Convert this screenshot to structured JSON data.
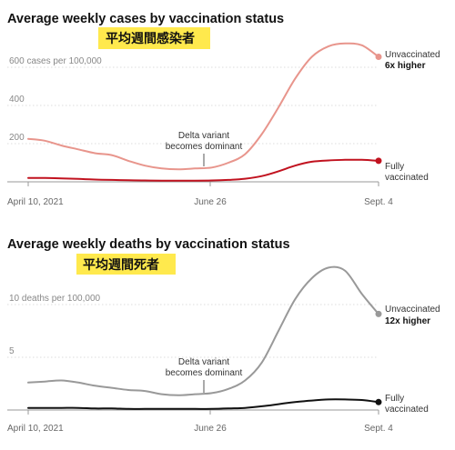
{
  "chart_data": [
    {
      "type": "line",
      "title": "Average weekly cases by vaccination status",
      "callout": "平均週間感染者",
      "ylabel": "cases per 100,000",
      "ylim": [
        0,
        800
      ],
      "yticks": [
        {
          "value": 600,
          "label": "600 cases per 100,000"
        },
        {
          "value": 400,
          "label": "400"
        },
        {
          "value": 200,
          "label": "200"
        }
      ],
      "xlim": [
        "2021-04-10",
        "2021-09-04"
      ],
      "xticks": [
        {
          "date": "2021-04-10",
          "label": "April 10, 2021"
        },
        {
          "date": "2021-06-26",
          "label": "June 26"
        },
        {
          "date": "2021-09-04",
          "label": "Sept. 4"
        }
      ],
      "annotation": {
        "date": "2021-06-26",
        "lines": [
          "Delta variant",
          "becomes dominant"
        ]
      },
      "series": [
        {
          "name": "Unvaccinated",
          "note": "6x higher",
          "color": "#e8958c",
          "x": [
            "2021-04-10",
            "2021-04-17",
            "2021-04-24",
            "2021-05-01",
            "2021-05-08",
            "2021-05-15",
            "2021-05-22",
            "2021-05-29",
            "2021-06-05",
            "2021-06-12",
            "2021-06-19",
            "2021-06-26",
            "2021-07-03",
            "2021-07-10",
            "2021-07-17",
            "2021-07-24",
            "2021-07-31",
            "2021-08-07",
            "2021-08-14",
            "2021-08-21",
            "2021-08-28",
            "2021-09-04"
          ],
          "values": [
            225,
            215,
            190,
            170,
            150,
            140,
            110,
            85,
            70,
            65,
            70,
            75,
            100,
            145,
            250,
            390,
            540,
            655,
            710,
            725,
            715,
            655
          ]
        },
        {
          "name": "Fully vaccinated",
          "note": "",
          "color": "#c1121f",
          "x": [
            "2021-04-10",
            "2021-04-17",
            "2021-04-24",
            "2021-05-01",
            "2021-05-08",
            "2021-05-15",
            "2021-05-22",
            "2021-05-29",
            "2021-06-05",
            "2021-06-12",
            "2021-06-19",
            "2021-06-26",
            "2021-07-03",
            "2021-07-10",
            "2021-07-17",
            "2021-07-24",
            "2021-07-31",
            "2021-08-07",
            "2021-08-14",
            "2021-08-21",
            "2021-08-28",
            "2021-09-04"
          ],
          "values": [
            20,
            20,
            18,
            15,
            12,
            10,
            8,
            7,
            6,
            6,
            6,
            7,
            10,
            16,
            30,
            55,
            85,
            105,
            112,
            115,
            115,
            110
          ]
        }
      ]
    },
    {
      "type": "line",
      "title": "Average weekly deaths by vaccination status",
      "callout": "平均週間死者",
      "ylabel": "deaths per 100,000",
      "ylim": [
        0,
        15
      ],
      "yticks": [
        {
          "value": 10,
          "label": "10 deaths per 100,000"
        },
        {
          "value": 5,
          "label": "5"
        }
      ],
      "xlim": [
        "2021-04-10",
        "2021-09-04"
      ],
      "xticks": [
        {
          "date": "2021-04-10",
          "label": "April 10, 2021"
        },
        {
          "date": "2021-06-26",
          "label": "June 26"
        },
        {
          "date": "2021-09-04",
          "label": "Sept. 4"
        }
      ],
      "annotation": {
        "date": "2021-06-26",
        "lines": [
          "Delta variant",
          "becomes dominant"
        ]
      },
      "series": [
        {
          "name": "Unvaccinated",
          "note": "12x higher",
          "color": "#999999",
          "x": [
            "2021-04-10",
            "2021-04-17",
            "2021-04-24",
            "2021-05-01",
            "2021-05-08",
            "2021-05-15",
            "2021-05-22",
            "2021-05-29",
            "2021-06-05",
            "2021-06-12",
            "2021-06-19",
            "2021-06-26",
            "2021-07-03",
            "2021-07-10",
            "2021-07-17",
            "2021-07-24",
            "2021-07-31",
            "2021-08-07",
            "2021-08-14",
            "2021-08-21",
            "2021-08-28",
            "2021-09-04"
          ],
          "values": [
            2.6,
            2.7,
            2.8,
            2.6,
            2.3,
            2.1,
            1.9,
            1.8,
            1.5,
            1.4,
            1.5,
            1.6,
            2.0,
            2.8,
            4.5,
            7.5,
            10.5,
            12.5,
            13.5,
            13.2,
            11.0,
            9.1
          ]
        },
        {
          "name": "Fully vaccinated",
          "note": "",
          "color": "#111111",
          "x": [
            "2021-04-10",
            "2021-04-17",
            "2021-04-24",
            "2021-05-01",
            "2021-05-08",
            "2021-05-15",
            "2021-05-22",
            "2021-05-29",
            "2021-06-05",
            "2021-06-12",
            "2021-06-19",
            "2021-06-26",
            "2021-07-03",
            "2021-07-10",
            "2021-07-17",
            "2021-07-24",
            "2021-07-31",
            "2021-08-07",
            "2021-08-14",
            "2021-08-21",
            "2021-08-28",
            "2021-09-04"
          ],
          "values": [
            0.2,
            0.2,
            0.2,
            0.2,
            0.15,
            0.15,
            0.1,
            0.1,
            0.1,
            0.1,
            0.1,
            0.1,
            0.15,
            0.2,
            0.35,
            0.55,
            0.75,
            0.9,
            1.0,
            1.0,
            0.95,
            0.75
          ]
        }
      ]
    }
  ]
}
